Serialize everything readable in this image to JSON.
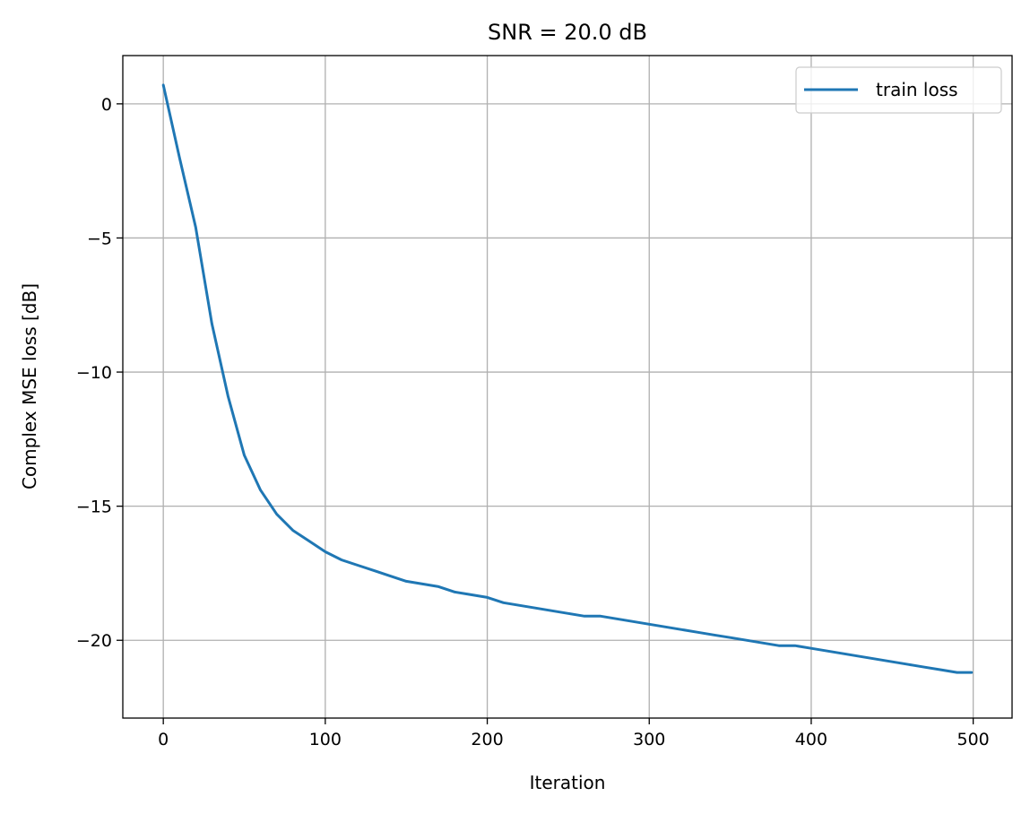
{
  "chart_data": {
    "type": "line",
    "title": "SNR = 20.0 dB",
    "xlabel": "Iteration",
    "ylabel": "Complex MSE loss [dB]",
    "xlim": [
      -25,
      524
    ],
    "ylim": [
      -22.9,
      1.8
    ],
    "xticks": [
      0,
      100,
      200,
      300,
      400,
      500
    ],
    "xtick_labels": [
      "0",
      "100",
      "200",
      "300",
      "400",
      "500"
    ],
    "yticks": [
      0,
      -5,
      -10,
      -15,
      -20
    ],
    "ytick_labels": [
      "0",
      "−5",
      "−10",
      "−15",
      "−20"
    ],
    "grid": true,
    "legend_position": "top-right",
    "series": [
      {
        "name": "train loss",
        "color": "#1f77b4",
        "x": [
          0,
          10,
          20,
          30,
          40,
          50,
          60,
          70,
          80,
          90,
          100,
          110,
          120,
          130,
          140,
          150,
          160,
          170,
          180,
          190,
          200,
          210,
          220,
          230,
          240,
          250,
          260,
          270,
          280,
          290,
          300,
          310,
          320,
          330,
          340,
          350,
          360,
          370,
          380,
          390,
          400,
          410,
          420,
          430,
          440,
          450,
          460,
          470,
          480,
          490,
          499
        ],
        "y": [
          0.7,
          -2.0,
          -4.6,
          -8.2,
          -10.9,
          -13.1,
          -14.4,
          -15.3,
          -15.9,
          -16.3,
          -16.7,
          -17.0,
          -17.2,
          -17.4,
          -17.6,
          -17.8,
          -17.9,
          -18.0,
          -18.2,
          -18.3,
          -18.4,
          -18.6,
          -18.7,
          -18.8,
          -18.9,
          -19.0,
          -19.1,
          -19.1,
          -19.2,
          -19.3,
          -19.4,
          -19.5,
          -19.6,
          -19.7,
          -19.8,
          -19.9,
          -20.0,
          -20.1,
          -20.2,
          -20.2,
          -20.3,
          -20.4,
          -20.5,
          -20.6,
          -20.7,
          -20.8,
          -20.9,
          -21.0,
          -21.1,
          -21.2,
          -21.2
        ]
      }
    ]
  }
}
